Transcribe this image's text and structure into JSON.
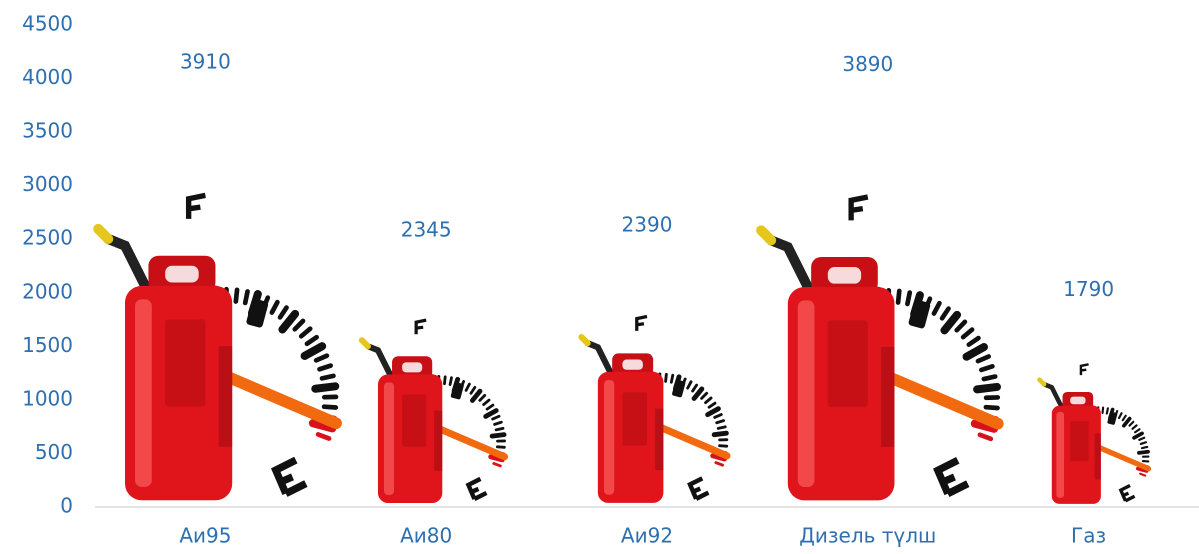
{
  "chart_data": {
    "type": "bar",
    "categories": [
      "Аи95",
      "Аи80",
      "Аи92",
      "Дизель түлш",
      "Газ"
    ],
    "values": [
      3910,
      2345,
      2390,
      3890,
      1790
    ],
    "color": "#e0141b",
    "ylim": [
      0,
      4500
    ],
    "yticks": [
      0,
      500,
      1000,
      1500,
      2000,
      2500,
      3000,
      3500,
      4000,
      4500
    ],
    "grid": false
  }
}
